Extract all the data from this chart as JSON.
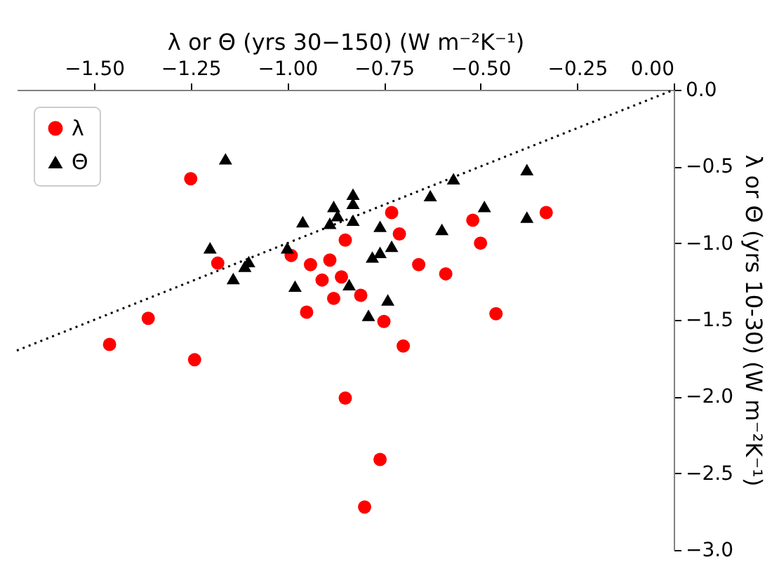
{
  "chart_data": {
    "type": "scatter",
    "xlabel": "λ or Θ (yrs 30−150) (W m⁻²K⁻¹)",
    "ylabel": "λ or Θ (yrs 10-30) (W m⁻²K⁻¹)",
    "xlim": [
      -1.7,
      0
    ],
    "ylim": [
      -3.0,
      0
    ],
    "xticks": [
      {
        "value": -1.5,
        "label": "−1.50"
      },
      {
        "value": -1.25,
        "label": "−1.25"
      },
      {
        "value": -1.0,
        "label": "−1.00"
      },
      {
        "value": -0.75,
        "label": "−0.75"
      },
      {
        "value": -0.5,
        "label": "−0.50"
      },
      {
        "value": -0.25,
        "label": "−0.25"
      },
      {
        "value": 0,
        "label": "0.00"
      }
    ],
    "yticks": [
      {
        "value": -3.0,
        "label": "−3.0"
      },
      {
        "value": -2.5,
        "label": "−2.5"
      },
      {
        "value": -2.0,
        "label": "−2.0"
      },
      {
        "value": -1.5,
        "label": "−1.5"
      },
      {
        "value": -1.0,
        "label": "−1.0"
      },
      {
        "value": -0.5,
        "label": "−0.5"
      },
      {
        "value": 0,
        "label": "0.0"
      }
    ],
    "grid": false,
    "legend": "top left",
    "series": [
      {
        "type": "line",
        "color": "#000000",
        "line_style": "dotted",
        "x": [
          -1.7,
          0
        ],
        "values": [
          -1.7,
          0
        ]
      },
      {
        "name": "λ",
        "color": "#ff0000",
        "marker": "circle",
        "x": [
          -1.25,
          -1.18,
          -1.36,
          -1.46,
          -1.24,
          -0.85,
          -0.99,
          -0.94,
          -0.89,
          -0.85,
          -0.91,
          -0.86,
          -0.88,
          -0.95,
          -0.81,
          -0.75,
          -0.73,
          -0.71,
          -0.66,
          -0.59,
          -0.52,
          -0.5,
          -0.33,
          -0.46,
          -0.7,
          -0.76,
          -0.8
        ],
        "values": [
          -0.58,
          -1.13,
          -1.49,
          -1.66,
          -1.76,
          -2.01,
          -1.08,
          -1.14,
          -1.11,
          -0.98,
          -1.24,
          -1.22,
          -1.36,
          -1.45,
          -1.34,
          -1.51,
          -0.8,
          -0.94,
          -1.14,
          -1.2,
          -0.85,
          -1.0,
          -0.8,
          -1.46,
          -1.67,
          -2.41,
          -2.72
        ]
      },
      {
        "name": "Θ",
        "color": "#000000",
        "marker": "triangle",
        "x": [
          -1.16,
          -1.2,
          -1.1,
          -1.11,
          -1.14,
          -0.96,
          -1.0,
          -0.98,
          -0.88,
          -0.87,
          -0.89,
          -0.83,
          -0.83,
          -0.83,
          -0.76,
          -0.84,
          -0.78,
          -0.76,
          -0.79,
          -0.74,
          -0.73,
          -0.63,
          -0.57,
          -0.6,
          -0.49,
          -0.38,
          -0.38
        ],
        "values": [
          -0.45,
          -1.03,
          -1.12,
          -1.15,
          -1.23,
          -0.86,
          -1.03,
          -1.28,
          -0.76,
          -0.82,
          -0.87,
          -0.68,
          -0.74,
          -0.85,
          -0.89,
          -1.27,
          -1.09,
          -1.06,
          -1.47,
          -1.37,
          -1.02,
          -0.69,
          -0.58,
          -0.91,
          -0.76,
          -0.52,
          -0.83
        ]
      }
    ]
  }
}
